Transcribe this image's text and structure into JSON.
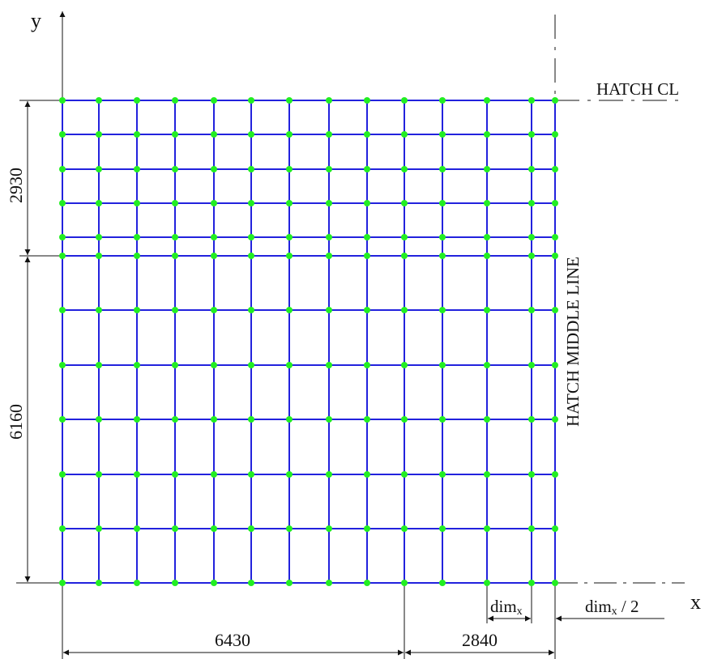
{
  "axes": {
    "x_label": "x",
    "y_label": "y"
  },
  "labels": {
    "hatch_cl": "HATCH CL",
    "hatch_middle_line": "HATCH MIDDLE LINE"
  },
  "dimensions": {
    "upper_height": "2930",
    "lower_height": "6160",
    "left_width": "6430",
    "right_width": "2840",
    "dim_x_base": "dim",
    "dim_x_sub": "x",
    "dim_x_half_base": "dim",
    "dim_x_half_sub": "x",
    "dim_x_half_suffix": " / 2"
  },
  "colors": {
    "grid_line": "#2222dd",
    "node": "#22ee22",
    "drafting_line": "#111111"
  }
}
